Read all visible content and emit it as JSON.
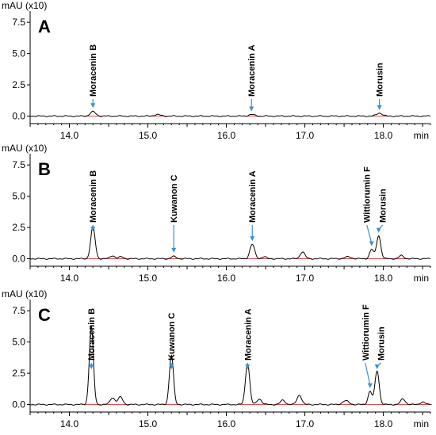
{
  "chart_data": [
    {
      "type": "line",
      "panel": "A",
      "unit_label": "mAU (x10)",
      "x_unit": "min",
      "xlim": [
        13.5,
        18.6
      ],
      "ylim": [
        -0.6,
        8.4
      ],
      "x_ticks": [
        "14.0",
        "15.0",
        "16.0",
        "17.0",
        "18.0"
      ],
      "y_ticks": [
        "0.0",
        "2.5",
        "5.0",
        "7.5"
      ],
      "peaks": [
        {
          "x": 14.3,
          "y": 0.35,
          "w": 0.035
        },
        {
          "x": 15.12,
          "y": 0.12,
          "w": 0.04
        },
        {
          "x": 16.32,
          "y": 0.12,
          "w": 0.04
        },
        {
          "x": 17.95,
          "y": 0.25,
          "w": 0.035
        }
      ],
      "annotations": [
        {
          "label": "Moracenin B",
          "x": 14.3
        },
        {
          "label": "Moracenin A",
          "x": 16.32
        },
        {
          "label": "Morusin",
          "x": 17.95
        }
      ]
    },
    {
      "type": "line",
      "panel": "B",
      "unit_label": "mAU (x10)",
      "x_unit": "min",
      "xlim": [
        13.5,
        18.6
      ],
      "ylim": [
        -0.6,
        8.4
      ],
      "x_ticks": [
        "14.0",
        "15.0",
        "16.0",
        "17.0",
        "18.0"
      ],
      "y_ticks": [
        "0.0",
        "2.5",
        "5.0",
        "7.5"
      ],
      "peaks": [
        {
          "x": 14.3,
          "y": 2.55,
          "w": 0.028
        },
        {
          "x": 14.55,
          "y": 0.25,
          "w": 0.03
        },
        {
          "x": 14.66,
          "y": 0.15,
          "w": 0.03
        },
        {
          "x": 15.33,
          "y": 0.18,
          "w": 0.03
        },
        {
          "x": 16.33,
          "y": 1.15,
          "w": 0.03
        },
        {
          "x": 16.48,
          "y": 0.15,
          "w": 0.03
        },
        {
          "x": 16.97,
          "y": 0.55,
          "w": 0.03
        },
        {
          "x": 17.55,
          "y": 0.15,
          "w": 0.04
        },
        {
          "x": 17.85,
          "y": 0.75,
          "w": 0.025
        },
        {
          "x": 17.94,
          "y": 1.85,
          "w": 0.027
        },
        {
          "x": 18.23,
          "y": 0.25,
          "w": 0.03
        },
        {
          "x": 18.95,
          "y": 0.25,
          "w": 0.03
        }
      ],
      "annotations": [
        {
          "label": "Moracenin B",
          "x": 14.3
        },
        {
          "label": "Kuwanon C",
          "x": 15.33
        },
        {
          "label": "Moracenin A",
          "x": 16.33
        },
        {
          "label": "Wittiorumin F",
          "x": 17.85
        },
        {
          "label": "Morusin",
          "x": 17.94
        }
      ]
    },
    {
      "type": "line",
      "panel": "C",
      "unit_label": "mAU (x10)",
      "x_unit": "min",
      "xlim": [
        13.5,
        18.6
      ],
      "ylim": [
        -0.6,
        8.4
      ],
      "x_ticks": [
        "14.0",
        "15.0",
        "16.0",
        "17.0",
        "18.0"
      ],
      "y_ticks": [
        "0.0",
        "2.5",
        "5.0",
        "7.5"
      ],
      "peaks": [
        {
          "x": 14.28,
          "y": 6.25,
          "w": 0.026
        },
        {
          "x": 14.55,
          "y": 0.55,
          "w": 0.03
        },
        {
          "x": 14.65,
          "y": 0.6,
          "w": 0.03
        },
        {
          "x": 15.3,
          "y": 3.95,
          "w": 0.026
        },
        {
          "x": 16.27,
          "y": 3.3,
          "w": 0.027
        },
        {
          "x": 16.42,
          "y": 0.45,
          "w": 0.03
        },
        {
          "x": 16.72,
          "y": 0.35,
          "w": 0.03
        },
        {
          "x": 16.93,
          "y": 0.75,
          "w": 0.03
        },
        {
          "x": 17.52,
          "y": 0.3,
          "w": 0.04
        },
        {
          "x": 17.83,
          "y": 1.05,
          "w": 0.025
        },
        {
          "x": 17.92,
          "y": 2.7,
          "w": 0.027
        },
        {
          "x": 18.25,
          "y": 0.45,
          "w": 0.03
        },
        {
          "x": 18.5,
          "y": 0.2,
          "w": 0.03
        },
        {
          "x": 18.95,
          "y": 0.35,
          "w": 0.03
        }
      ],
      "annotations": [
        {
          "label": "Moracenin B",
          "x": 14.28
        },
        {
          "label": "Kuwanon C",
          "x": 15.3
        },
        {
          "label": "Moracenin A",
          "x": 16.27
        },
        {
          "label": "Wittiorumin F",
          "x": 17.83
        },
        {
          "label": "Morusin",
          "x": 17.92
        }
      ]
    }
  ]
}
